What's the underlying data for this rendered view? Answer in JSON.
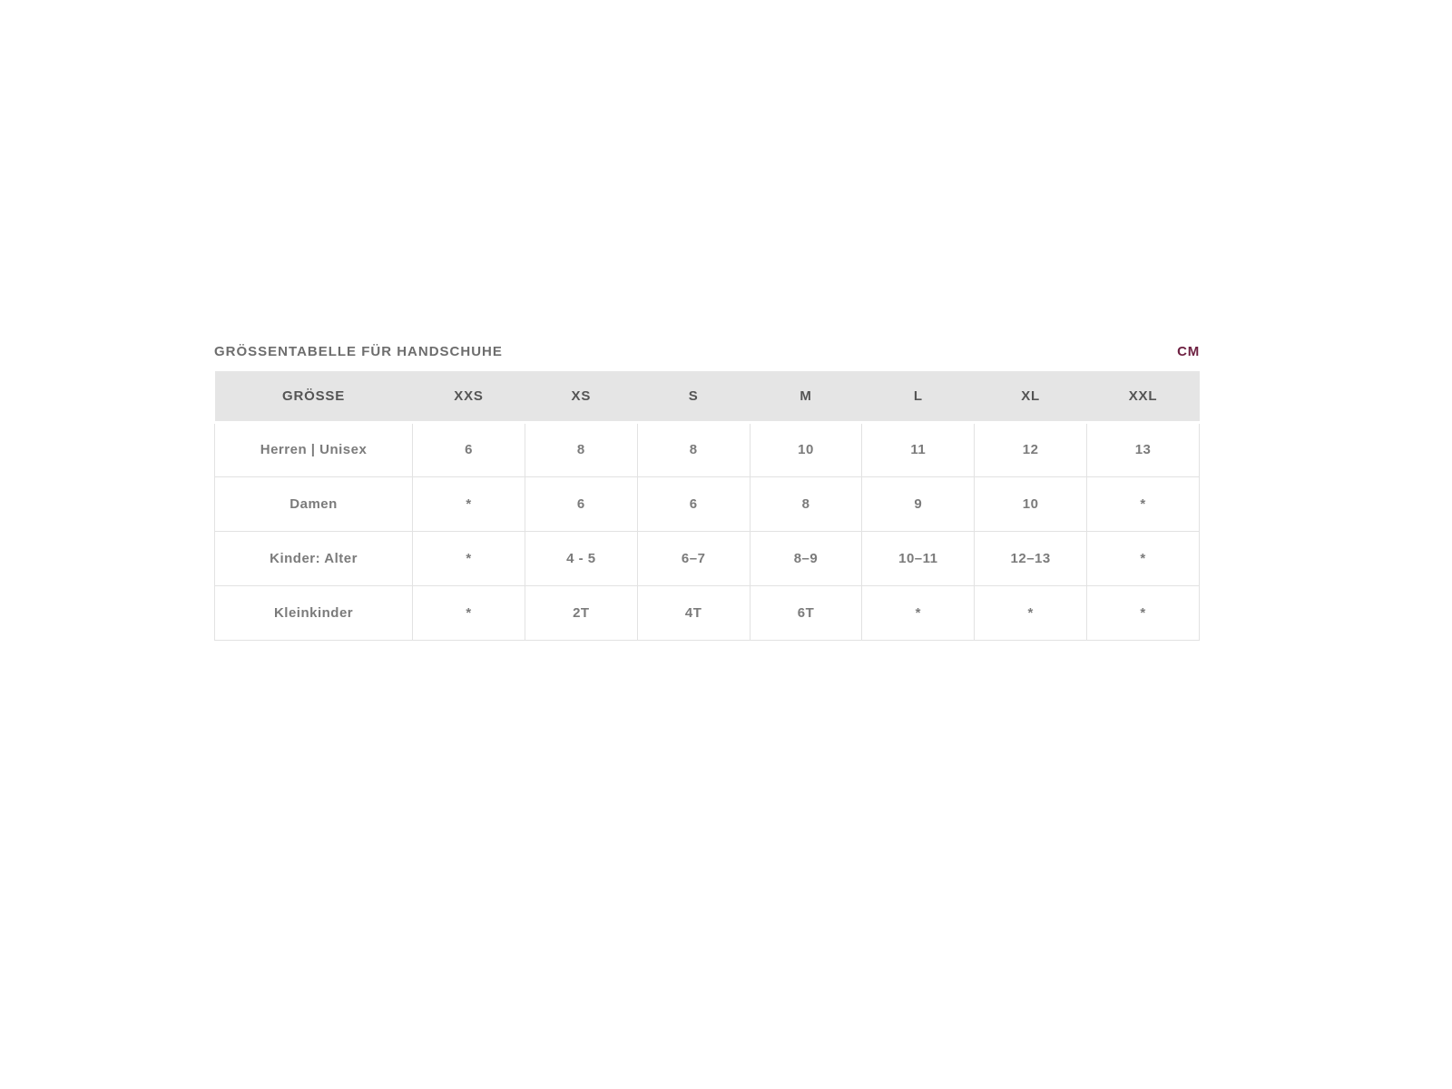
{
  "page": {
    "title": "GRÖSSENTABELLE FÜR HANDSCHUHE",
    "unit_label": "CM"
  },
  "colors": {
    "accent_maroon": "#6e2142",
    "header_bg": "#e5e5e5",
    "cell_border": "#e2e2e2",
    "title_text": "#6d6d6d",
    "header_text": "#555555",
    "cell_text": "#7b7b7b",
    "page_bg": "#ffffff"
  },
  "table": {
    "columns": [
      "GRÖSSE",
      "XXS",
      "XS",
      "S",
      "M",
      "L",
      "XL",
      "XXL"
    ],
    "rows": [
      {
        "label": "Herren | Unisex",
        "values": [
          "6",
          "8",
          "8",
          "10",
          "11",
          "12",
          "13"
        ]
      },
      {
        "label": "Damen",
        "values": [
          "*",
          "6",
          "6",
          "8",
          "9",
          "10",
          "*"
        ]
      },
      {
        "label": "Kinder: Alter",
        "values": [
          "*",
          "4 - 5",
          "6–7",
          "8–9",
          "10–11",
          "12–13",
          "*"
        ]
      },
      {
        "label": "Kleinkinder",
        "values": [
          "*",
          "2T",
          "4T",
          "6T",
          "*",
          "*",
          "*"
        ]
      }
    ]
  }
}
